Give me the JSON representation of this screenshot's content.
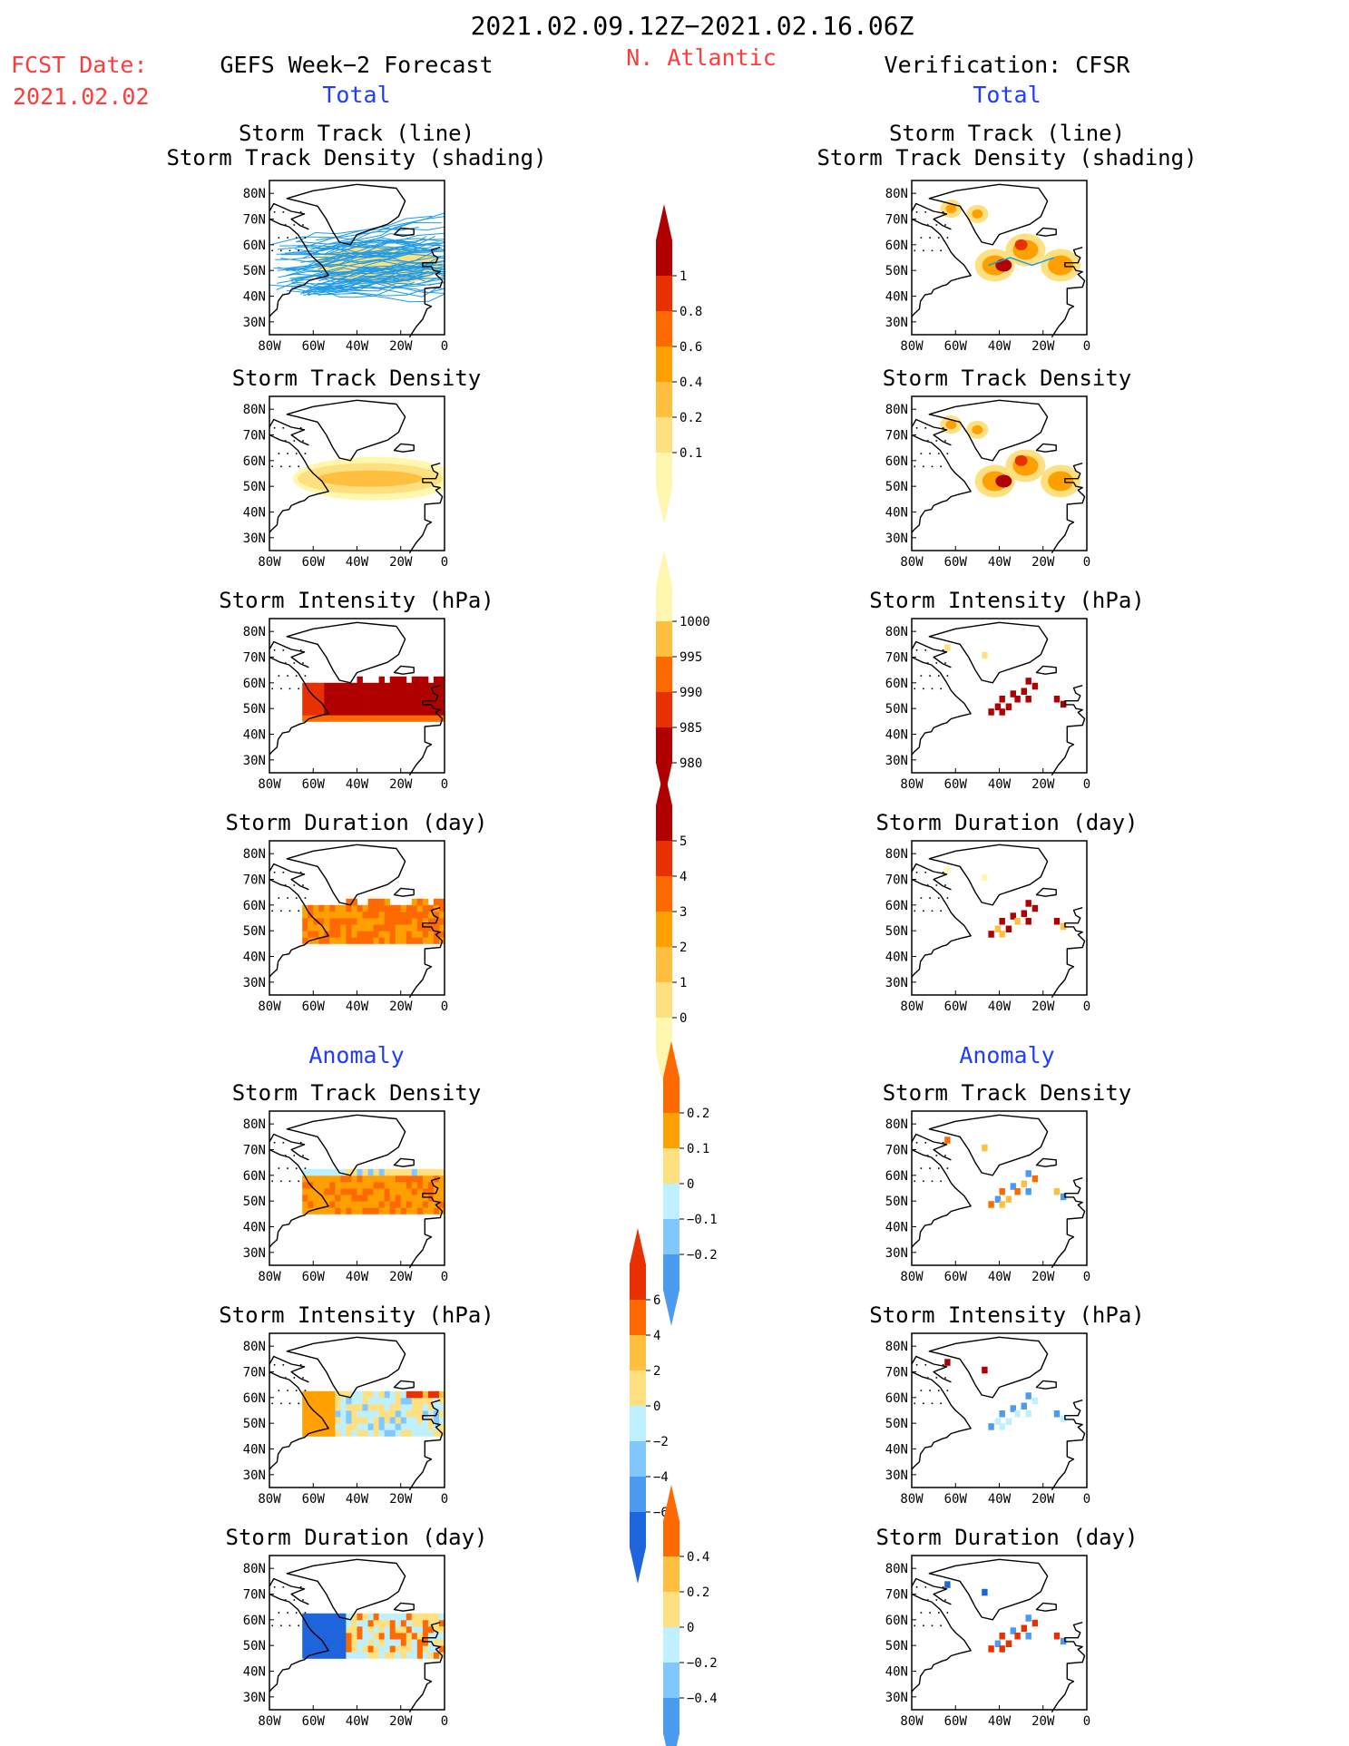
{
  "header": {
    "period": "2021.02.09.12Z−2021.02.16.06Z",
    "fcst_label": "FCST Date:",
    "fcst_date": "2021.02.02",
    "region": "N. Atlantic",
    "left_title": "GEFS Week−2 Forecast",
    "right_title": "Verification: CFSR"
  },
  "sections": {
    "total": "Total",
    "anomaly": "Anomaly"
  },
  "panel_titles": {
    "track_line": "Storm Track (line)",
    "track_shading": "Storm Track Density (shading)",
    "density": "Storm Track Density",
    "intensity": "Storm Intensity (hPa)",
    "duration": "Storm Duration (day)"
  },
  "axes": {
    "lat_labels": [
      "80N",
      "70N",
      "60N",
      "50N",
      "40N",
      "30N"
    ],
    "lon_labels": [
      "80W",
      "60W",
      "40W",
      "20W",
      "0"
    ]
  },
  "colorbars": {
    "density_total": [
      "1",
      "0.8",
      "0.6",
      "0.4",
      "0.2",
      "0.1"
    ],
    "intensity_total": [
      "1000",
      "995",
      "990",
      "985",
      "980"
    ],
    "duration_total": [
      "5",
      "4",
      "3",
      "2",
      "1",
      "0"
    ],
    "density_anom": [
      "0.2",
      "0.1",
      "0",
      "−0.1",
      "−0.2"
    ],
    "intensity_anom": [
      "6",
      "4",
      "2",
      "0",
      "−2",
      "−4",
      "−6"
    ],
    "duration_anom": [
      "0.4",
      "0.2",
      "0",
      "−0.2",
      "−0.4"
    ]
  },
  "colors": {
    "header_red": "#ff3b3b",
    "section_blue": "#1f3cff",
    "track_line": "#1f9be8",
    "warm": [
      "#fff7b0",
      "#ffe080",
      "#ffc040",
      "#ffa000",
      "#ff6a00",
      "#e83000",
      "#b00000"
    ],
    "cool": [
      "#bff0ff",
      "#80c8ff",
      "#4a9cf0",
      "#1e64dc"
    ]
  },
  "chart_data": [
    {
      "type": "heatmap",
      "panel": "forecast-total-track",
      "title": "Storm Track (line) / Storm Track Density (shading)",
      "xlim": [
        "80W",
        "0"
      ],
      "ylim": [
        "30N",
        "80N"
      ],
      "region": {
        "lon": [
          -80,
          0
        ],
        "lat": [
          40,
          65
        ]
      }
    },
    {
      "type": "heatmap",
      "panel": "forecast-total-density",
      "title": "Storm Track Density",
      "colorbar": [
        0.1,
        0.2,
        0.4,
        0.6,
        0.8,
        1
      ],
      "region": {
        "lon": [
          -65,
          0
        ],
        "lat": [
          45,
          61
        ]
      },
      "value_range": [
        0.1,
        0.4
      ]
    },
    {
      "type": "heatmap",
      "panel": "forecast-total-intensity",
      "title": "Storm Intensity (hPa)",
      "colorbar": [
        980,
        985,
        990,
        995,
        1000
      ],
      "region": {
        "lon": [
          -65,
          0
        ],
        "lat": [
          45,
          62
        ]
      },
      "value_range": [
        980,
        990
      ]
    },
    {
      "type": "heatmap",
      "panel": "forecast-total-duration",
      "title": "Storm Duration (day)",
      "colorbar": [
        0,
        1,
        2,
        3,
        4,
        5
      ],
      "region": {
        "lon": [
          -65,
          0
        ],
        "lat": [
          45,
          62
        ]
      },
      "value_range": [
        2,
        3
      ]
    },
    {
      "type": "heatmap",
      "panel": "forecast-anomaly-density",
      "title": "Storm Track Density",
      "colorbar": [
        -0.2,
        -0.1,
        0,
        0.1,
        0.2
      ],
      "region": {
        "lon": [
          -65,
          0
        ],
        "lat": [
          42,
          62
        ]
      },
      "value_range": [
        -0.1,
        0.2
      ]
    },
    {
      "type": "heatmap",
      "panel": "forecast-anomaly-intensity",
      "title": "Storm Intensity (hPa)",
      "colorbar": [
        -6,
        -4,
        -2,
        0,
        2,
        4,
        6
      ],
      "region": {
        "lon": [
          -65,
          0
        ],
        "lat": [
          45,
          62
        ]
      },
      "value_range": [
        -4,
        6
      ]
    },
    {
      "type": "heatmap",
      "panel": "forecast-anomaly-duration",
      "title": "Storm Duration (day)",
      "colorbar": [
        -0.4,
        -0.2,
        0,
        0.2,
        0.4
      ],
      "region": {
        "lon": [
          -65,
          0
        ],
        "lat": [
          45,
          62
        ]
      },
      "value_range": [
        -0.4,
        0.4
      ]
    },
    {
      "type": "heatmap",
      "panel": "verification-total-track",
      "title": "Storm Track (line) / Storm Track Density (shading)",
      "region": {
        "lon": [
          -50,
          -15
        ],
        "lat": [
          45,
          68
        ]
      }
    },
    {
      "type": "heatmap",
      "panel": "verification-total-density",
      "title": "Storm Track Density",
      "region": {
        "lon": [
          -50,
          -15
        ],
        "lat": [
          45,
          68
        ]
      },
      "value_range": [
        0.1,
        1
      ]
    },
    {
      "type": "heatmap",
      "panel": "verification-total-intensity",
      "title": "Storm Intensity (hPa)",
      "region": {
        "lon": [
          -50,
          -15
        ],
        "lat": [
          46,
          64
        ]
      },
      "value_range": [
        980,
        985
      ]
    },
    {
      "type": "heatmap",
      "panel": "verification-total-duration",
      "title": "Storm Duration (day)",
      "region": {
        "lon": [
          -50,
          -15
        ],
        "lat": [
          46,
          64
        ]
      },
      "value_range": [
        0,
        5
      ]
    },
    {
      "type": "heatmap",
      "panel": "verification-anomaly-density",
      "title": "Storm Track Density",
      "region": {
        "lon": [
          -75,
          -15
        ],
        "lat": [
          45,
          76
        ]
      },
      "value_range": [
        -0.2,
        0.2
      ]
    },
    {
      "type": "heatmap",
      "panel": "verification-anomaly-intensity",
      "title": "Storm Intensity (hPa)",
      "region": {
        "lon": [
          -75,
          -15
        ],
        "lat": [
          45,
          76
        ]
      },
      "value_range": [
        -6,
        6
      ]
    },
    {
      "type": "heatmap",
      "panel": "verification-anomaly-duration",
      "title": "Storm Duration (day)",
      "region": {
        "lon": [
          -75,
          -15
        ],
        "lat": [
          45,
          76
        ]
      },
      "value_range": [
        -0.4,
        0.4
      ]
    }
  ]
}
